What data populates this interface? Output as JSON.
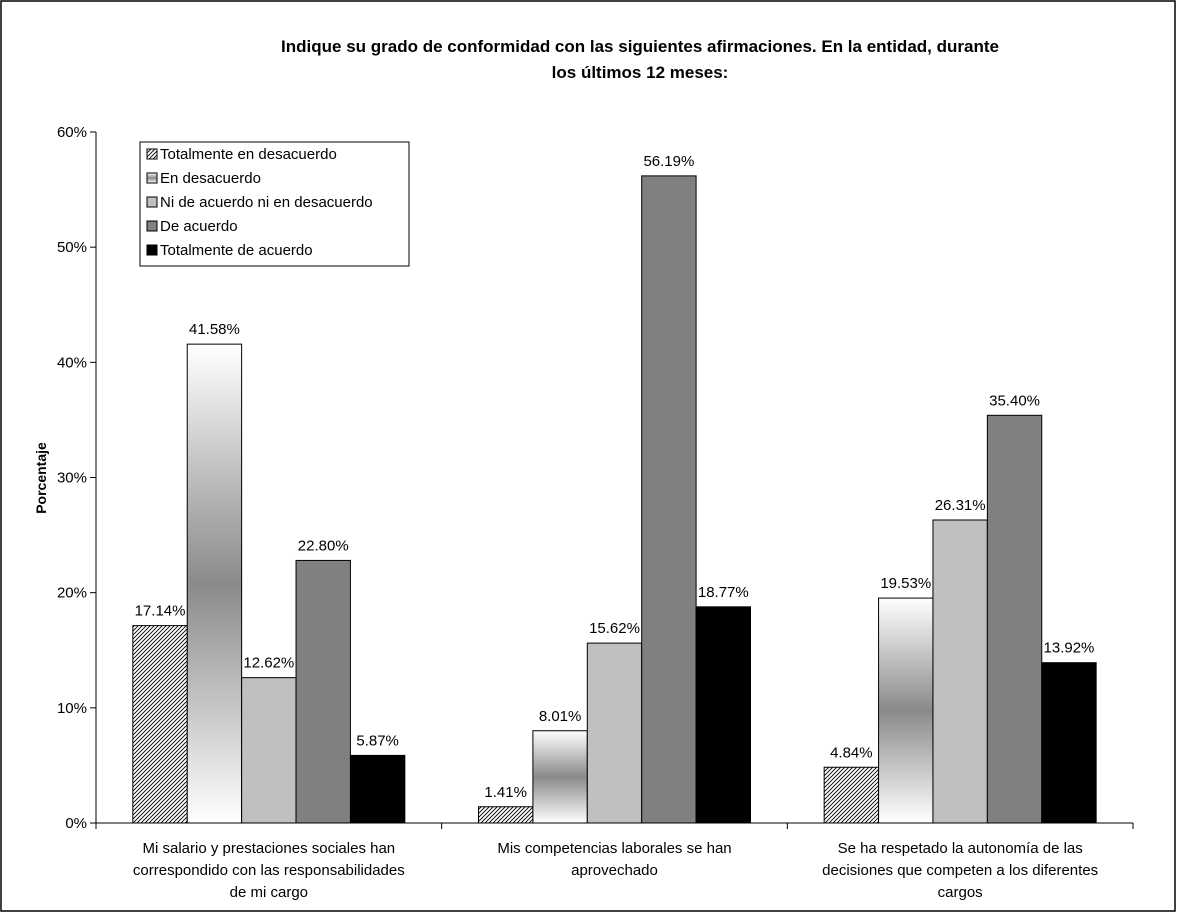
{
  "chart_data": {
    "type": "bar",
    "title_line1": "Indique su grado de conformidad con las siguientes afirmaciones. En la entidad, durante",
    "title_line2": "los últimos 12 meses:",
    "ylabel": "Porcentaje",
    "xlabel": "",
    "ylim": [
      0,
      60
    ],
    "y_tick_labels": [
      "0%",
      "10%",
      "20%",
      "30%",
      "40%",
      "50%",
      "60%"
    ],
    "grid": false,
    "legend_position": "top-left",
    "categories": [
      [
        "Mi salario y prestaciones sociales han",
        "correspondido con las responsabilidades",
        "de mi cargo"
      ],
      [
        "Mis competencias laborales se han",
        "aprovechado"
      ],
      [
        "Se ha respetado la autonomía de las",
        "decisiones que competen a los diferentes",
        "cargos"
      ]
    ],
    "series": [
      {
        "name": "Totalmente en desacuerdo",
        "values": [
          17.14,
          1.41,
          4.84
        ],
        "labels": [
          "17.14%",
          "1.41%",
          "4.84%"
        ],
        "fill": "hatch"
      },
      {
        "name": "En desacuerdo",
        "values": [
          41.58,
          8.01,
          19.53
        ],
        "labels": [
          "41.58%",
          "8.01%",
          "19.53%"
        ],
        "fill": "gradient"
      },
      {
        "name": "Ni de acuerdo ni en desacuerdo",
        "values": [
          12.62,
          15.62,
          26.31
        ],
        "labels": [
          "12.62%",
          "15.62%",
          "26.31%"
        ],
        "fill": "#c0c0c0"
      },
      {
        "name": "De acuerdo",
        "values": [
          22.8,
          56.19,
          35.4
        ],
        "labels": [
          "22.80%",
          "56.19%",
          "35.40%"
        ],
        "fill": "#808080"
      },
      {
        "name": "Totalmente de acuerdo",
        "values": [
          5.87,
          18.77,
          13.92
        ],
        "labels": [
          "5.87%",
          "18.77%",
          "13.92%"
        ],
        "fill": "#000000"
      }
    ]
  }
}
